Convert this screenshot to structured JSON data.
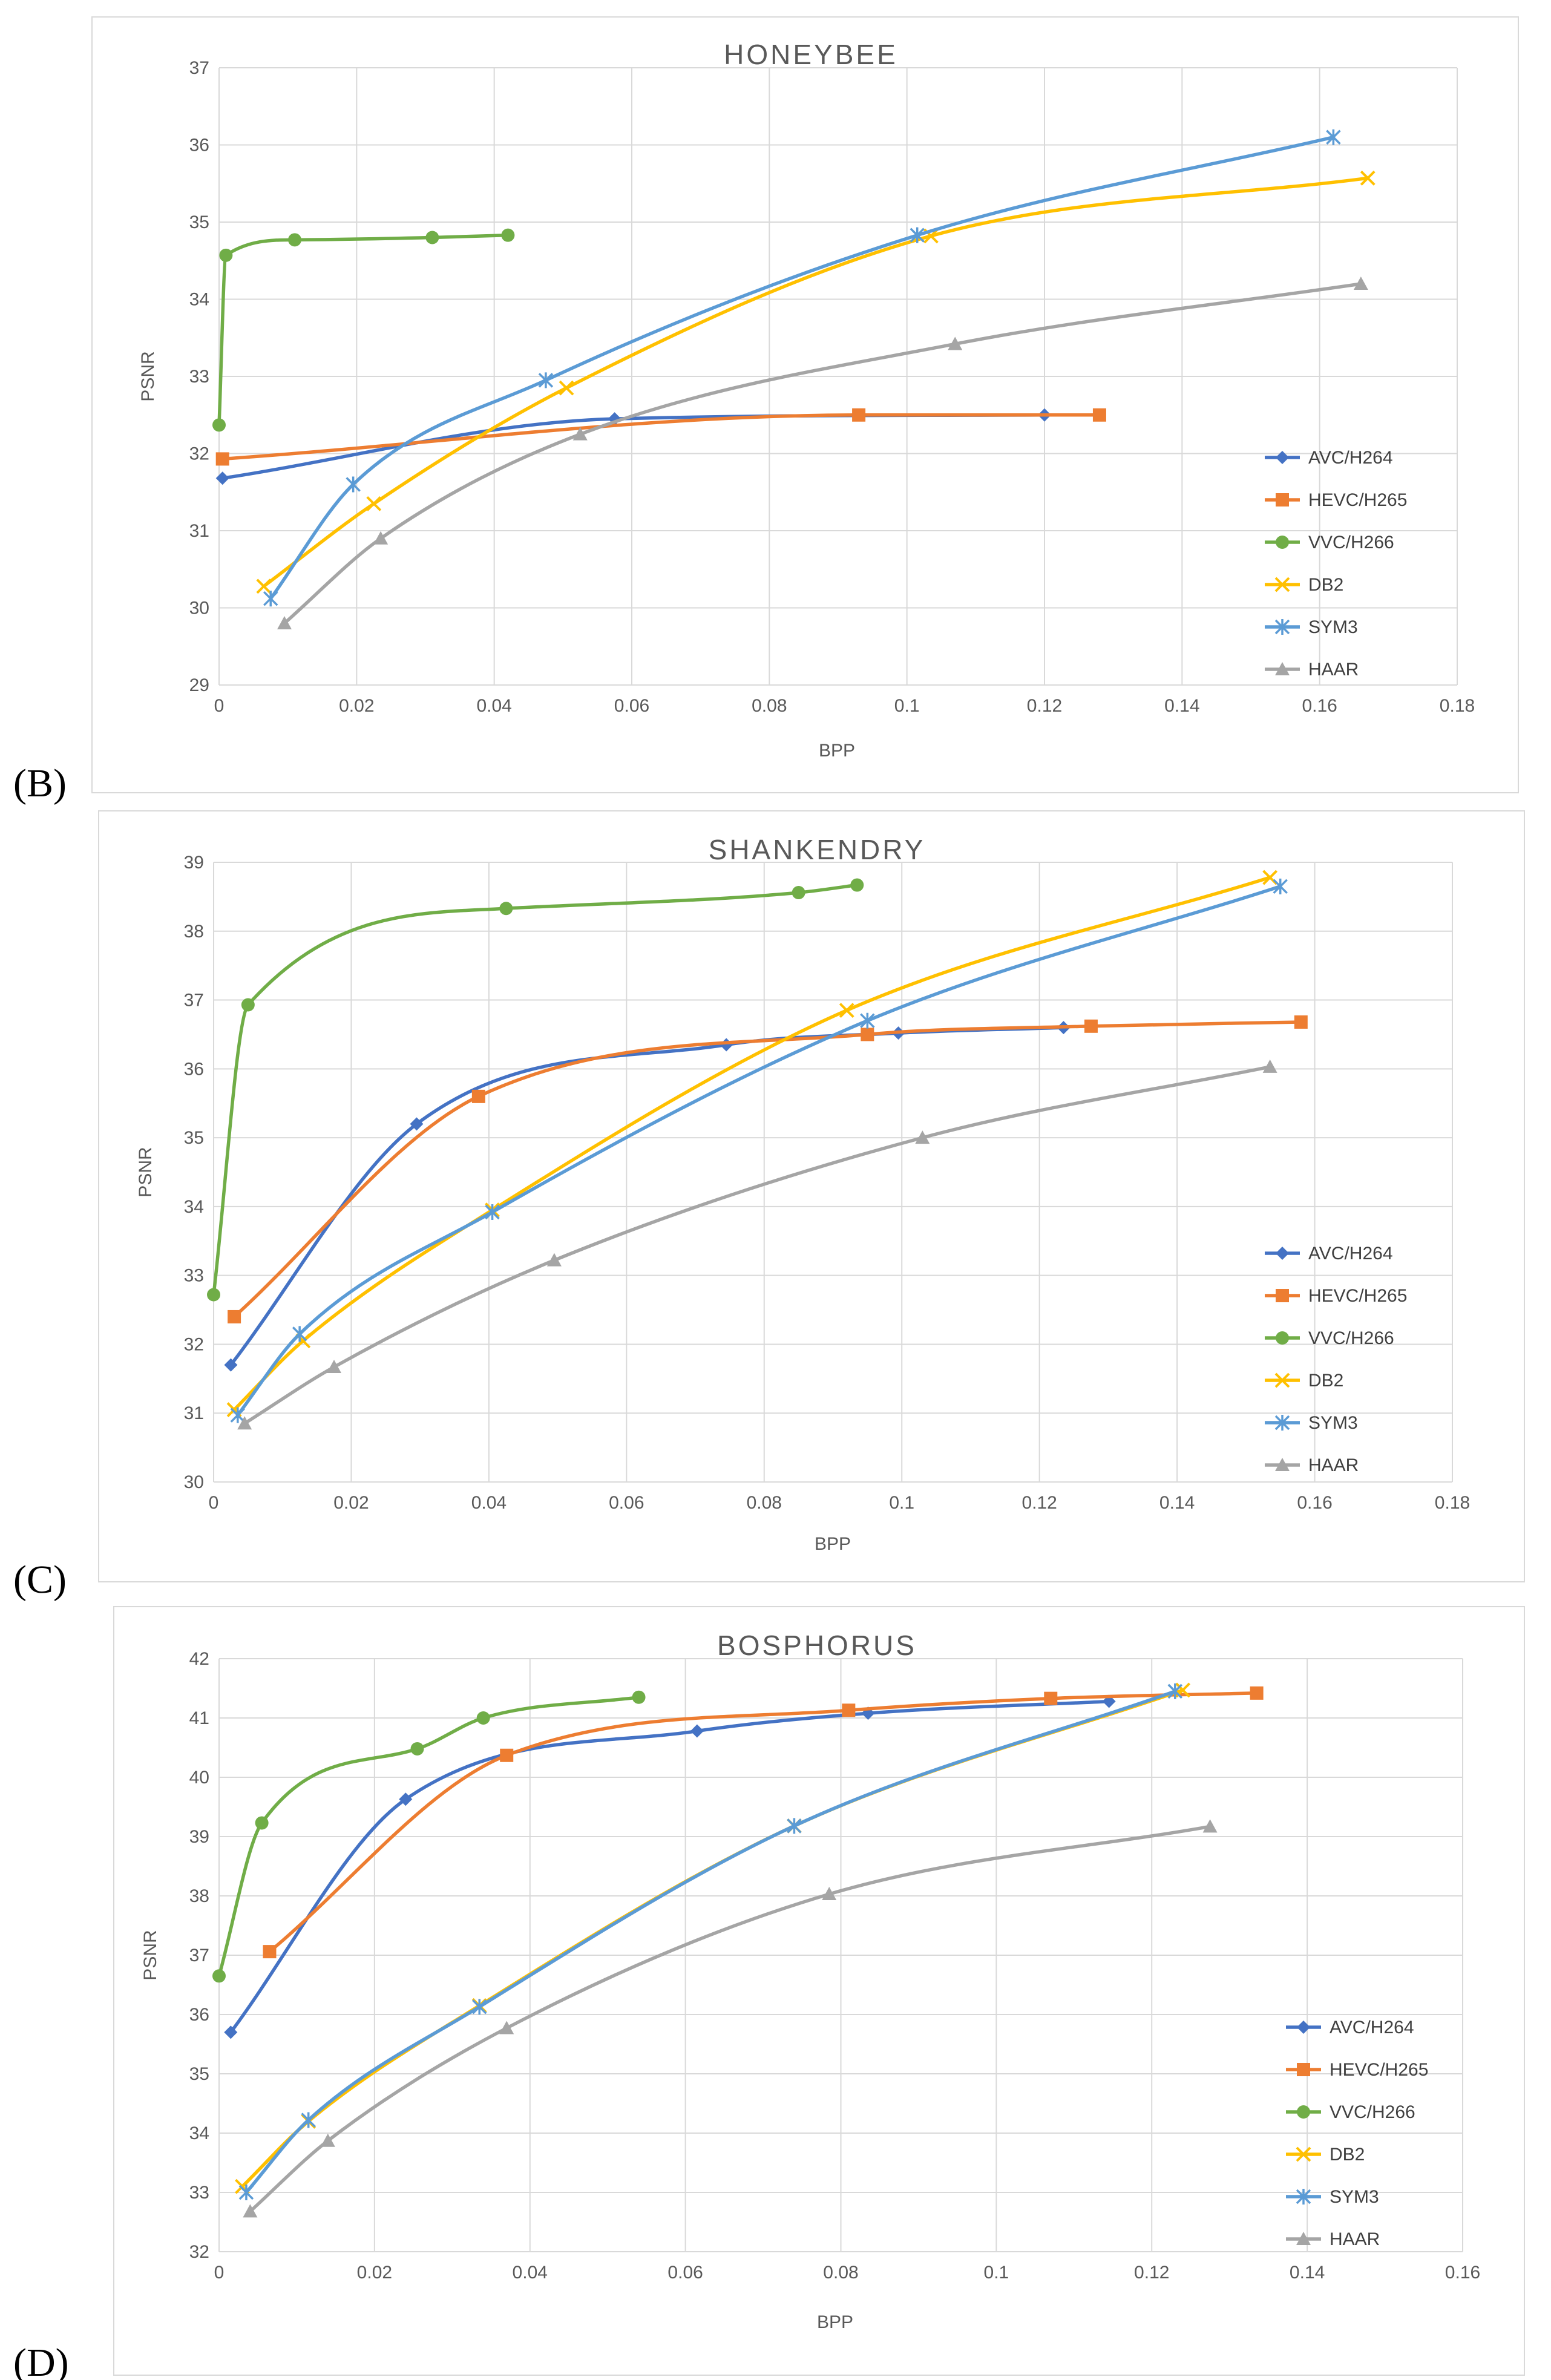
{
  "chart_data": [
    {
      "type": "line",
      "panel_label": "(B)",
      "title": "HONEYBEE",
      "xlabel": "BPP",
      "ylabel": "PSNR",
      "xlim": [
        0,
        0.18
      ],
      "ylim": [
        29,
        37
      ],
      "x_ticks": [
        "0",
        "0.02",
        "0.04",
        "0.06",
        "0.08",
        "0.1",
        "0.12",
        "0.14",
        "0.16",
        "0.18"
      ],
      "y_ticks": [
        "29",
        "30",
        "31",
        "32",
        "33",
        "34",
        "35",
        "36",
        "37"
      ],
      "grid": true,
      "legend_position": "right",
      "series": [
        {
          "name": "AVC/H264",
          "color": "#4472C4",
          "marker": "diamond",
          "points": [
            [
              0.0005,
              31.68
            ],
            [
              0.0575,
              32.45
            ],
            [
              0.12,
              32.5
            ]
          ]
        },
        {
          "name": "HEVC/H265",
          "color": "#ED7D31",
          "marker": "square",
          "points": [
            [
              0.0005,
              31.93
            ],
            [
              0.093,
              32.5
            ],
            [
              0.128,
              32.5
            ]
          ]
        },
        {
          "name": "VVC/H266",
          "color": "#70AD47",
          "marker": "circle",
          "points": [
            [
              0,
              32.37
            ],
            [
              0.001,
              34.57
            ],
            [
              0.011,
              34.77
            ],
            [
              0.031,
              34.8
            ],
            [
              0.042,
              34.83
            ]
          ]
        },
        {
          "name": "DB2",
          "color": "#FFC000",
          "marker": "x",
          "points": [
            [
              0.0065,
              30.28
            ],
            [
              0.0225,
              31.35
            ],
            [
              0.0505,
              32.85
            ],
            [
              0.1035,
              34.82
            ],
            [
              0.167,
              35.57
            ]
          ]
        },
        {
          "name": "SYM3",
          "color": "#5B9BD5",
          "marker": "star",
          "points": [
            [
              0.0075,
              30.12
            ],
            [
              0.0195,
              31.6
            ],
            [
              0.0475,
              32.95
            ],
            [
              0.1015,
              34.83
            ],
            [
              0.162,
              36.1
            ]
          ]
        },
        {
          "name": "HAAR",
          "color": "#A5A5A5",
          "marker": "triangle",
          "points": [
            [
              0.0095,
              29.8
            ],
            [
              0.0235,
              30.9
            ],
            [
              0.0525,
              32.25
            ],
            [
              0.107,
              33.42
            ],
            [
              0.166,
              34.2
            ]
          ]
        }
      ]
    },
    {
      "type": "line",
      "panel_label": "(C)",
      "title": "SHANKENDRY",
      "xlabel": "BPP",
      "ylabel": "PSNR",
      "xlim": [
        0,
        0.18
      ],
      "ylim": [
        30,
        39
      ],
      "x_ticks": [
        "0",
        "0.02",
        "0.04",
        "0.06",
        "0.08",
        "0.1",
        "0.12",
        "0.14",
        "0.16",
        "0.18"
      ],
      "y_ticks": [
        "30",
        "31",
        "32",
        "33",
        "34",
        "35",
        "36",
        "37",
        "38",
        "39"
      ],
      "grid": true,
      "legend_position": "right",
      "series": [
        {
          "name": "AVC/H264",
          "color": "#4472C4",
          "marker": "diamond",
          "points": [
            [
              0.0025,
              31.7
            ],
            [
              0.0295,
              35.2
            ],
            [
              0.0745,
              36.35
            ],
            [
              0.0995,
              36.52
            ],
            [
              0.1235,
              36.6
            ]
          ]
        },
        {
          "name": "HEVC/H265",
          "color": "#ED7D31",
          "marker": "square",
          "points": [
            [
              0.003,
              32.4
            ],
            [
              0.0385,
              35.6
            ],
            [
              0.095,
              36.5
            ],
            [
              0.1275,
              36.62
            ],
            [
              0.158,
              36.68
            ]
          ]
        },
        {
          "name": "VVC/H266",
          "color": "#70AD47",
          "marker": "circle",
          "points": [
            [
              0,
              32.72
            ],
            [
              0.005,
              36.93
            ],
            [
              0.0425,
              38.33
            ],
            [
              0.085,
              38.56
            ],
            [
              0.0935,
              38.67
            ]
          ]
        },
        {
          "name": "DB2",
          "color": "#FFC000",
          "marker": "x",
          "points": [
            [
              0.003,
              31.05
            ],
            [
              0.013,
              32.05
            ],
            [
              0.0405,
              33.95
            ],
            [
              0.092,
              36.85
            ],
            [
              0.1535,
              38.78
            ]
          ]
        },
        {
          "name": "SYM3",
          "color": "#5B9BD5",
          "marker": "star",
          "points": [
            [
              0.0035,
              30.97
            ],
            [
              0.0125,
              32.15
            ],
            [
              0.0405,
              33.92
            ],
            [
              0.095,
              36.7
            ],
            [
              0.155,
              38.65
            ]
          ]
        },
        {
          "name": "HAAR",
          "color": "#A5A5A5",
          "marker": "triangle",
          "points": [
            [
              0.0045,
              30.85
            ],
            [
              0.0175,
              31.67
            ],
            [
              0.0495,
              33.22
            ],
            [
              0.103,
              35.0
            ],
            [
              0.1535,
              36.03
            ]
          ]
        }
      ]
    },
    {
      "type": "line",
      "panel_label": "(D)",
      "title": "BOSPHORUS",
      "xlabel": "BPP",
      "ylabel": "PSNR",
      "xlim": [
        0,
        0.16
      ],
      "ylim": [
        32,
        42
      ],
      "x_ticks": [
        "0",
        "0.02",
        "0.04",
        "0.06",
        "0.08",
        "0.1",
        "0.12",
        "0.14",
        "0.16"
      ],
      "y_ticks": [
        "32",
        "33",
        "34",
        "35",
        "36",
        "37",
        "38",
        "39",
        "40",
        "41",
        "42"
      ],
      "grid": true,
      "legend_position": "right",
      "series": [
        {
          "name": "AVC/H264",
          "color": "#4472C4",
          "marker": "diamond",
          "points": [
            [
              0.0015,
              35.7
            ],
            [
              0.024,
              39.63
            ],
            [
              0.0615,
              40.78
            ],
            [
              0.0835,
              41.08
            ],
            [
              0.1145,
              41.28
            ]
          ]
        },
        {
          "name": "HEVC/H265",
          "color": "#ED7D31",
          "marker": "square",
          "points": [
            [
              0.0065,
              37.06
            ],
            [
              0.037,
              40.37
            ],
            [
              0.081,
              41.13
            ],
            [
              0.107,
              41.33
            ],
            [
              0.1335,
              41.42
            ]
          ]
        },
        {
          "name": "VVC/H266",
          "color": "#70AD47",
          "marker": "circle",
          "points": [
            [
              0,
              36.65
            ],
            [
              0.0055,
              39.23
            ],
            [
              0.0255,
              40.48
            ],
            [
              0.034,
              41.0
            ],
            [
              0.054,
              41.35
            ]
          ]
        },
        {
          "name": "DB2",
          "color": "#FFC000",
          "marker": "x",
          "points": [
            [
              0.003,
              33.1
            ],
            [
              0.0115,
              34.2
            ],
            [
              0.0335,
              36.15
            ],
            [
              0.074,
              39.18
            ],
            [
              0.124,
              41.47
            ]
          ]
        },
        {
          "name": "SYM3",
          "color": "#5B9BD5",
          "marker": "star",
          "points": [
            [
              0.0035,
              33.0
            ],
            [
              0.0115,
              34.22
            ],
            [
              0.0335,
              36.13
            ],
            [
              0.074,
              39.18
            ],
            [
              0.123,
              41.45
            ]
          ]
        },
        {
          "name": "HAAR",
          "color": "#A5A5A5",
          "marker": "triangle",
          "points": [
            [
              0.004,
              32.68
            ],
            [
              0.014,
              33.87
            ],
            [
              0.037,
              35.77
            ],
            [
              0.0785,
              38.03
            ],
            [
              0.1275,
              39.17
            ]
          ]
        }
      ]
    }
  ]
}
